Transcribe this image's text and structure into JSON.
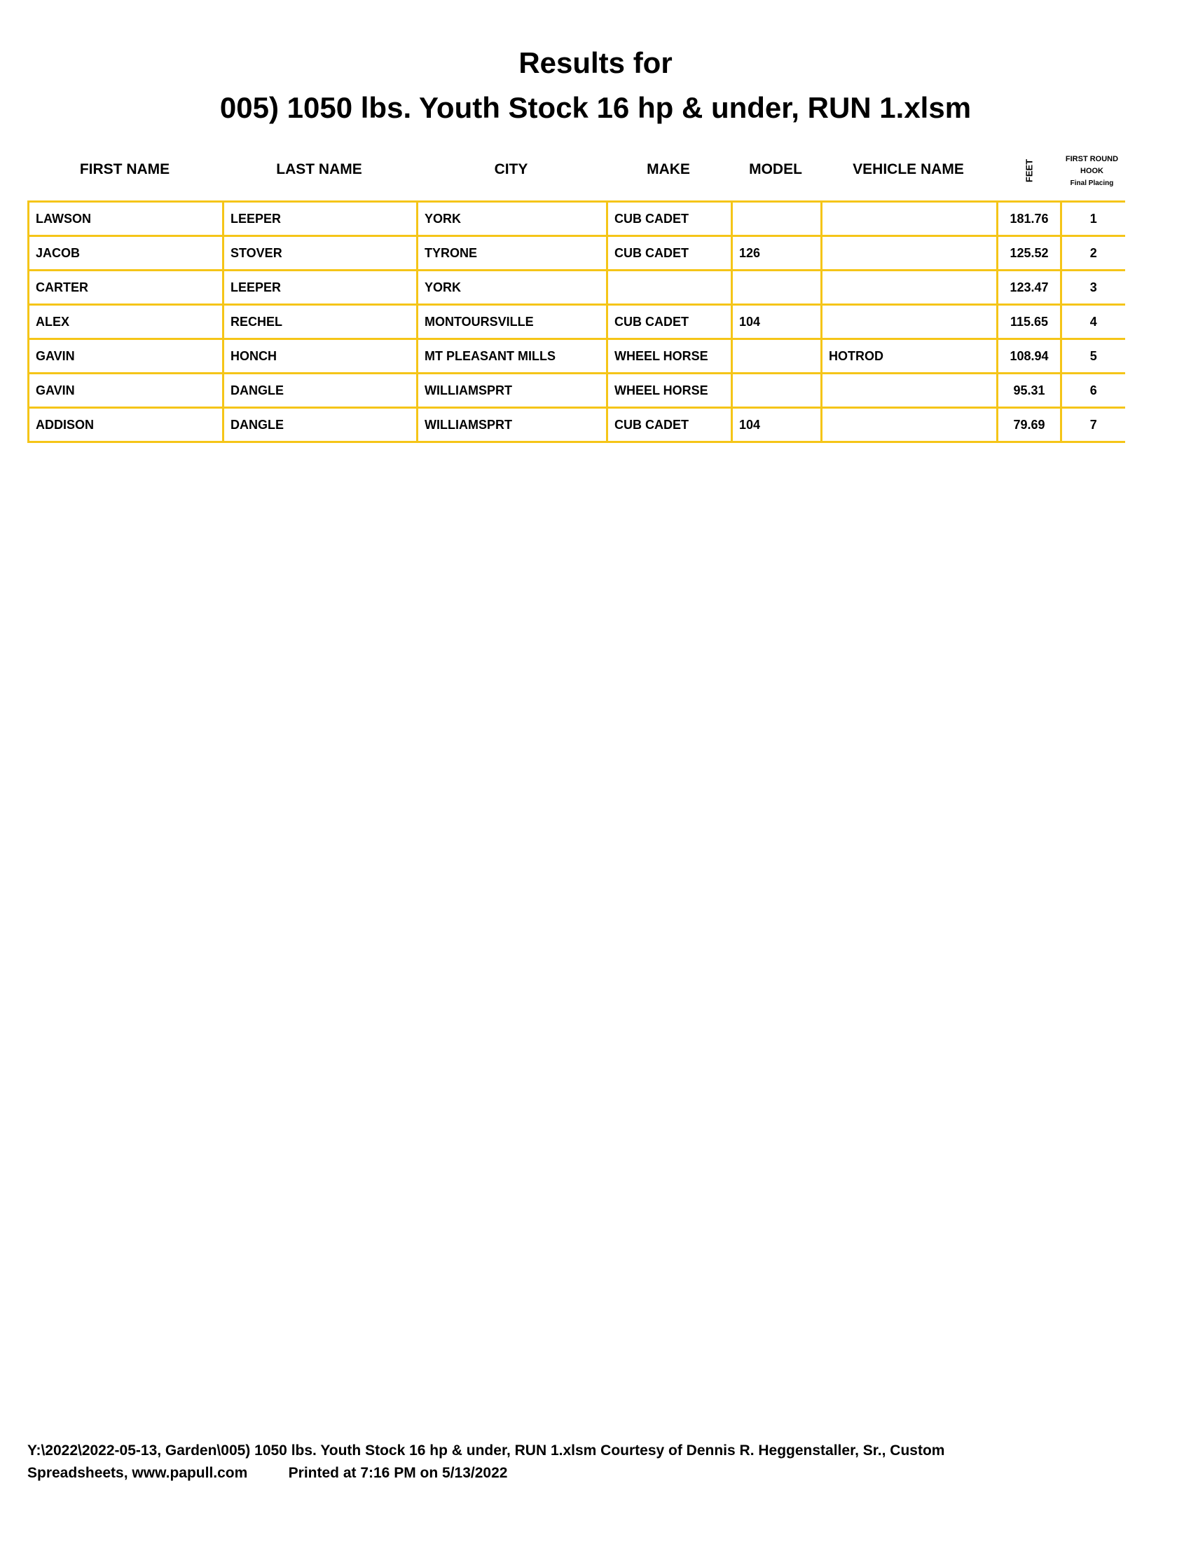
{
  "title_line1": "Results for",
  "title_line2": "005) 1050 lbs. Youth Stock 16 hp & under, RUN 1.xlsm",
  "headers": {
    "first_name": "FIRST NAME",
    "last_name": "LAST NAME",
    "city": "CITY",
    "make": "MAKE",
    "model": "MODEL",
    "vehicle_name": "VEHICLE NAME",
    "feet": "FEET",
    "placing_1": "FIRST ROUND",
    "placing_2": "HOOK",
    "placing_3": "Final Placing"
  },
  "rows": [
    {
      "first": "LAWSON",
      "last": "LEEPER",
      "city": "YORK",
      "make": "CUB CADET",
      "model": "",
      "vehicle": "",
      "feet": "181.76",
      "place": "1"
    },
    {
      "first": "JACOB",
      "last": "STOVER",
      "city": "TYRONE",
      "make": "CUB CADET",
      "model": "126",
      "vehicle": "",
      "feet": "125.52",
      "place": "2"
    },
    {
      "first": "CARTER",
      "last": "LEEPER",
      "city": "YORK",
      "make": "",
      "model": "",
      "vehicle": "",
      "feet": "123.47",
      "place": "3"
    },
    {
      "first": "ALEX",
      "last": "RECHEL",
      "city": "MONTOURSVILLE",
      "make": "CUB CADET",
      "model": "104",
      "vehicle": "",
      "feet": "115.65",
      "place": "4"
    },
    {
      "first": "GAVIN",
      "last": "HONCH",
      "city": "MT PLEASANT MILLS",
      "make": "WHEEL HORSE",
      "model": "",
      "vehicle": "HOTROD",
      "feet": "108.94",
      "place": "5"
    },
    {
      "first": "GAVIN",
      "last": "DANGLE",
      "city": "WILLIAMSPRT",
      "make": "WHEEL HORSE",
      "model": "",
      "vehicle": "",
      "feet": "95.31",
      "place": "6"
    },
    {
      "first": "ADDISON",
      "last": "DANGLE",
      "city": "WILLIAMSPRT",
      "make": "CUB CADET",
      "model": "104",
      "vehicle": "",
      "feet": "79.69",
      "place": "7"
    }
  ],
  "footer_line1": "Y:\\2022\\2022-05-13, Garden\\005) 1050 lbs. Youth Stock 16 hp & under, RUN 1.xlsm  Courtesy of Dennis R. Heggenstaller, Sr., Custom",
  "footer_line2": "Spreadsheets, www.papull.com          Printed at 7:16 PM on 5/13/2022",
  "colors": {
    "grid": "#f5c518"
  }
}
